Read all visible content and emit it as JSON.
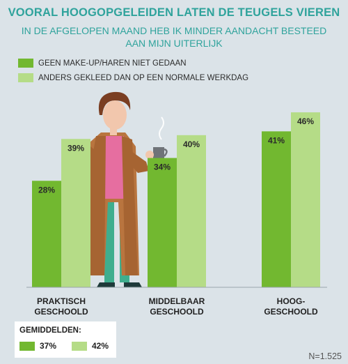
{
  "title": "VOORAL HOOGOPGELEIDEN LATEN DE TEUGELS VIEREN",
  "subtitle": "IN DE AFGELOPEN MAAND HEB IK MINDER AANDACHT BESTEED AAN MIJN UITERLIJK",
  "colors": {
    "dark_green": "#72b830",
    "light_green": "#b5dc87",
    "accent": "#2fa39c"
  },
  "chart_data": {
    "type": "bar",
    "categories": [
      "PRAKTISCH\nGESCHOOLD",
      "MIDDELBAAR\nGESCHOOLD",
      "HOOG-\nGESCHOOLD"
    ],
    "series": [
      {
        "name": "GEEN MAKE-UP/HAREN NIET GEDAAN",
        "values": [
          28,
          34,
          41
        ],
        "labels": [
          "28%",
          "34%",
          "41%"
        ]
      },
      {
        "name": "ANDERS GEKLEED DAN OP EEN NORMALE WERKDAG",
        "values": [
          39,
          40,
          46
        ],
        "labels": [
          "39%",
          "40%",
          "46%"
        ]
      }
    ],
    "ylim": [
      0,
      55
    ],
    "grid": false,
    "legend_position": "top-left"
  },
  "averages": {
    "title": "GEMIDDELDEN:",
    "values": [
      "37%",
      "42%"
    ]
  },
  "footnote": "N=1.525",
  "illustration": "person-with-coffee-cup-illustration"
}
